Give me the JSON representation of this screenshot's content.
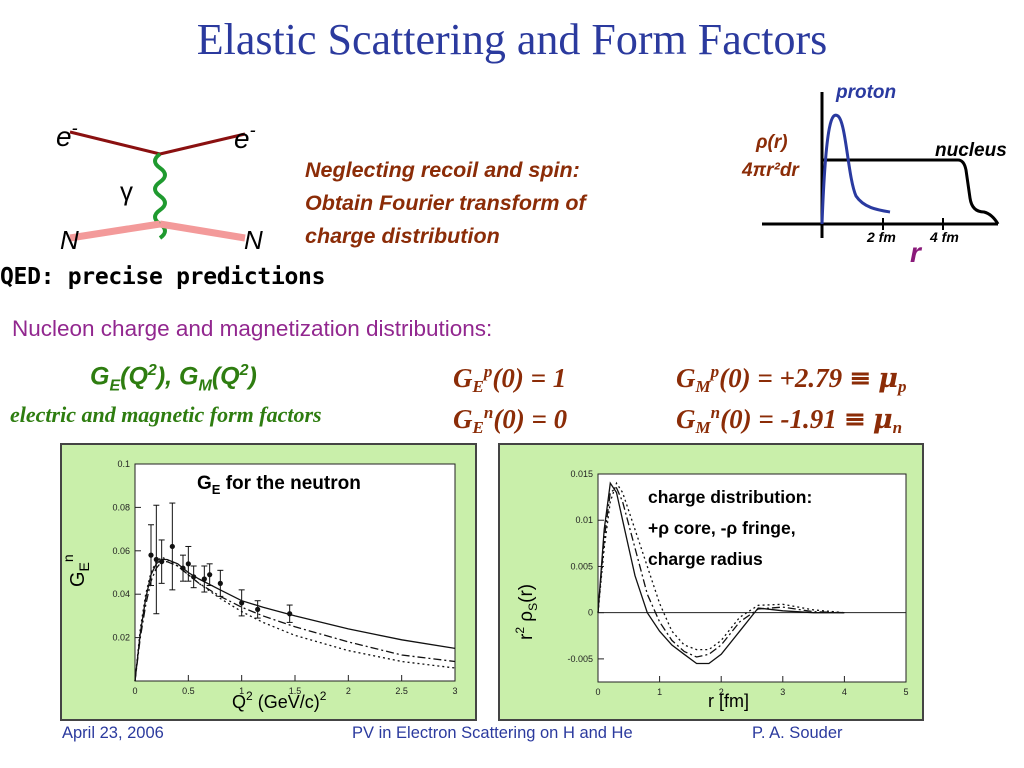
{
  "slide": {
    "title": "Elastic Scattering and Form Factors",
    "qed_caption": "QED: precise predictions",
    "neglect_line1": "Neglecting recoil and spin:",
    "neglect_line2": "Obtain Fourier transform of",
    "neglect_line3": "charge distribution",
    "nucleon_line": "Nucleon charge and magnetization distributions:",
    "form_factors_caption": "electric and magnetic form factors"
  },
  "feynman": {
    "electron_in": "e",
    "electron_out": "e",
    "electron_charge": "-",
    "photon": "γ",
    "nucleon_in": "N",
    "nucleon_out": "N"
  },
  "density_plot": {
    "proton_label": "proton",
    "nucleus_label": "nucleus",
    "ylabel_top": "ρ(r)",
    "ylabel_bottom": "4πr²dr",
    "xlabel": "r",
    "tick_2": "2 fm",
    "tick_4": "4 fm"
  },
  "equations": {
    "ge_gm": {
      "G": "G",
      "E": "E",
      "Q": "(Q",
      "two": "2",
      "mid": "), G",
      "M": "M",
      "end": ")"
    },
    "ge_p": {
      "G": "G",
      "sub": "E",
      "sup": "p",
      "rest": "(0) = 1"
    },
    "ge_n": {
      "G": "G",
      "sub": "E",
      "sup": "n",
      "rest": "(0) = 0"
    },
    "gm_p": {
      "G": "G",
      "sub": "M",
      "sup": "p",
      "rest": "(0) = +2.79 ",
      "equiv": "≡",
      "mu": "μ",
      "mu_sub": "p"
    },
    "gm_n": {
      "G": "G",
      "sub": "M",
      "sup": "n",
      "rest": "(0) =  -1.91 ",
      "equiv": "≡",
      "mu": "μ",
      "mu_sub": "n"
    }
  },
  "colors": {
    "title": "#2b3a9e",
    "accent_brown": "#8b2c07",
    "accent_green": "#2e7d10",
    "purple": "#92278f",
    "panel_bg": "#c9efaa",
    "proton_curve": "#2a3aa0"
  },
  "chart_data": [
    {
      "type": "line",
      "title": "G_E for the neutron",
      "title_parts": {
        "G": "G",
        "E": "E",
        "rest": " for the neutron"
      },
      "xlabel": "Q² (GeV/c)²",
      "xlabel_parts": {
        "Q": "Q",
        "two": "2",
        "unit": " (GeV/c)",
        "two_b": "2"
      },
      "ylabel": "G_E^n",
      "ylabel_parts": {
        "G": "G",
        "E": "E",
        "n": "n"
      },
      "xlim": [
        0,
        3
      ],
      "ylim": [
        0,
        0.1
      ],
      "xticks": [
        "0",
        "0.5",
        "1",
        "1.5",
        "2",
        "2.5",
        "3"
      ],
      "yticks": [
        "0.02",
        "0.04",
        "0.06",
        "0.08",
        "0.1"
      ],
      "series": [
        {
          "style": "solid",
          "x": [
            0,
            0.05,
            0.1,
            0.15,
            0.2,
            0.25,
            0.3,
            0.4,
            0.5,
            0.6,
            0.8,
            1.0,
            1.2,
            1.5,
            2.0,
            2.5,
            3.0
          ],
          "values": [
            0,
            0.022,
            0.038,
            0.049,
            0.054,
            0.056,
            0.056,
            0.054,
            0.05,
            0.047,
            0.042,
            0.037,
            0.034,
            0.03,
            0.024,
            0.019,
            0.015
          ]
        },
        {
          "style": "dashdot",
          "x": [
            0,
            0.05,
            0.1,
            0.15,
            0.2,
            0.25,
            0.3,
            0.4,
            0.5,
            0.6,
            0.8,
            1.0,
            1.2,
            1.5,
            2.0,
            2.5,
            3.0
          ],
          "values": [
            0,
            0.02,
            0.035,
            0.046,
            0.052,
            0.055,
            0.055,
            0.053,
            0.049,
            0.045,
            0.039,
            0.034,
            0.03,
            0.025,
            0.018,
            0.012,
            0.009
          ]
        },
        {
          "style": "dotted",
          "x": [
            0,
            0.05,
            0.1,
            0.15,
            0.2,
            0.25,
            0.3,
            0.4,
            0.5,
            0.6,
            0.8,
            1.0,
            1.2,
            1.5,
            2.0,
            2.5,
            3.0
          ],
          "values": [
            0,
            0.024,
            0.04,
            0.05,
            0.055,
            0.057,
            0.056,
            0.053,
            0.049,
            0.045,
            0.038,
            0.032,
            0.027,
            0.021,
            0.014,
            0.009,
            0.006
          ]
        }
      ],
      "points": [
        {
          "x": 0.15,
          "y": 0.058,
          "err": 0.014
        },
        {
          "x": 0.2,
          "y": 0.056,
          "err": 0.025
        },
        {
          "x": 0.25,
          "y": 0.055,
          "err": 0.01
        },
        {
          "x": 0.35,
          "y": 0.062,
          "err": 0.02
        },
        {
          "x": 0.45,
          "y": 0.052,
          "err": 0.006
        },
        {
          "x": 0.5,
          "y": 0.054,
          "err": 0.008
        },
        {
          "x": 0.55,
          "y": 0.048,
          "err": 0.005
        },
        {
          "x": 0.65,
          "y": 0.047,
          "err": 0.006
        },
        {
          "x": 0.7,
          "y": 0.049,
          "err": 0.005
        },
        {
          "x": 0.8,
          "y": 0.045,
          "err": 0.006
        },
        {
          "x": 1.0,
          "y": 0.036,
          "err": 0.006
        },
        {
          "x": 1.15,
          "y": 0.033,
          "err": 0.004
        },
        {
          "x": 1.45,
          "y": 0.031,
          "err": 0.004
        }
      ]
    },
    {
      "type": "line",
      "title": "",
      "annotation_lines": [
        "charge distribution:",
        "+ρ core, -ρ fringe,",
        "charge radius"
      ],
      "xlabel": "r [fm]",
      "ylabel": "r² ρ_s(r)",
      "ylabel_parts": {
        "r": "r",
        "two": "2",
        "rho": " ρ",
        "s": "S",
        "r_arg": "(r)"
      },
      "xlim": [
        0,
        5
      ],
      "ylim": [
        -0.0075,
        0.015
      ],
      "xticks": [
        "0",
        "1",
        "2",
        "3",
        "4",
        "5"
      ],
      "yticks": [
        "0.015",
        "0.01",
        "0.005",
        "0",
        "-0.005"
      ],
      "series": [
        {
          "style": "solid",
          "x": [
            0,
            0.1,
            0.2,
            0.3,
            0.4,
            0.5,
            0.6,
            0.8,
            1.0,
            1.2,
            1.4,
            1.6,
            1.8,
            2.0,
            2.3,
            2.6,
            3.0,
            3.5,
            4.0
          ],
          "values": [
            0,
            0.009,
            0.014,
            0.013,
            0.01,
            0.007,
            0.004,
            0.0,
            -0.002,
            -0.0035,
            -0.0045,
            -0.0055,
            -0.0055,
            -0.0045,
            -0.002,
            0.0005,
            0.0002,
            0.0,
            0.0
          ]
        },
        {
          "style": "dashdot",
          "x": [
            0,
            0.1,
            0.2,
            0.3,
            0.4,
            0.5,
            0.6,
            0.8,
            1.0,
            1.2,
            1.4,
            1.6,
            1.8,
            2.0,
            2.3,
            2.6,
            3.0,
            3.5,
            4.0
          ],
          "values": [
            0,
            0.008,
            0.013,
            0.0135,
            0.012,
            0.0095,
            0.007,
            0.002,
            -0.001,
            -0.003,
            -0.0042,
            -0.0048,
            -0.0045,
            -0.0035,
            -0.001,
            0.0004,
            0.0006,
            0.0001,
            0.0
          ]
        },
        {
          "style": "dotted",
          "x": [
            0,
            0.1,
            0.2,
            0.3,
            0.4,
            0.5,
            0.6,
            0.8,
            1.0,
            1.2,
            1.4,
            1.6,
            1.8,
            2.0,
            2.3,
            2.6,
            3.0,
            3.5,
            4.0
          ],
          "values": [
            0,
            0.007,
            0.012,
            0.014,
            0.013,
            0.011,
            0.009,
            0.005,
            0.001,
            -0.002,
            -0.0035,
            -0.004,
            -0.004,
            -0.003,
            -0.0005,
            0.0008,
            0.0009,
            0.0003,
            0.0
          ]
        }
      ]
    }
  ],
  "footer": {
    "date": "April 23, 2006",
    "talk": "PV in Electron Scattering on H and He",
    "author": "P. A. Souder"
  }
}
